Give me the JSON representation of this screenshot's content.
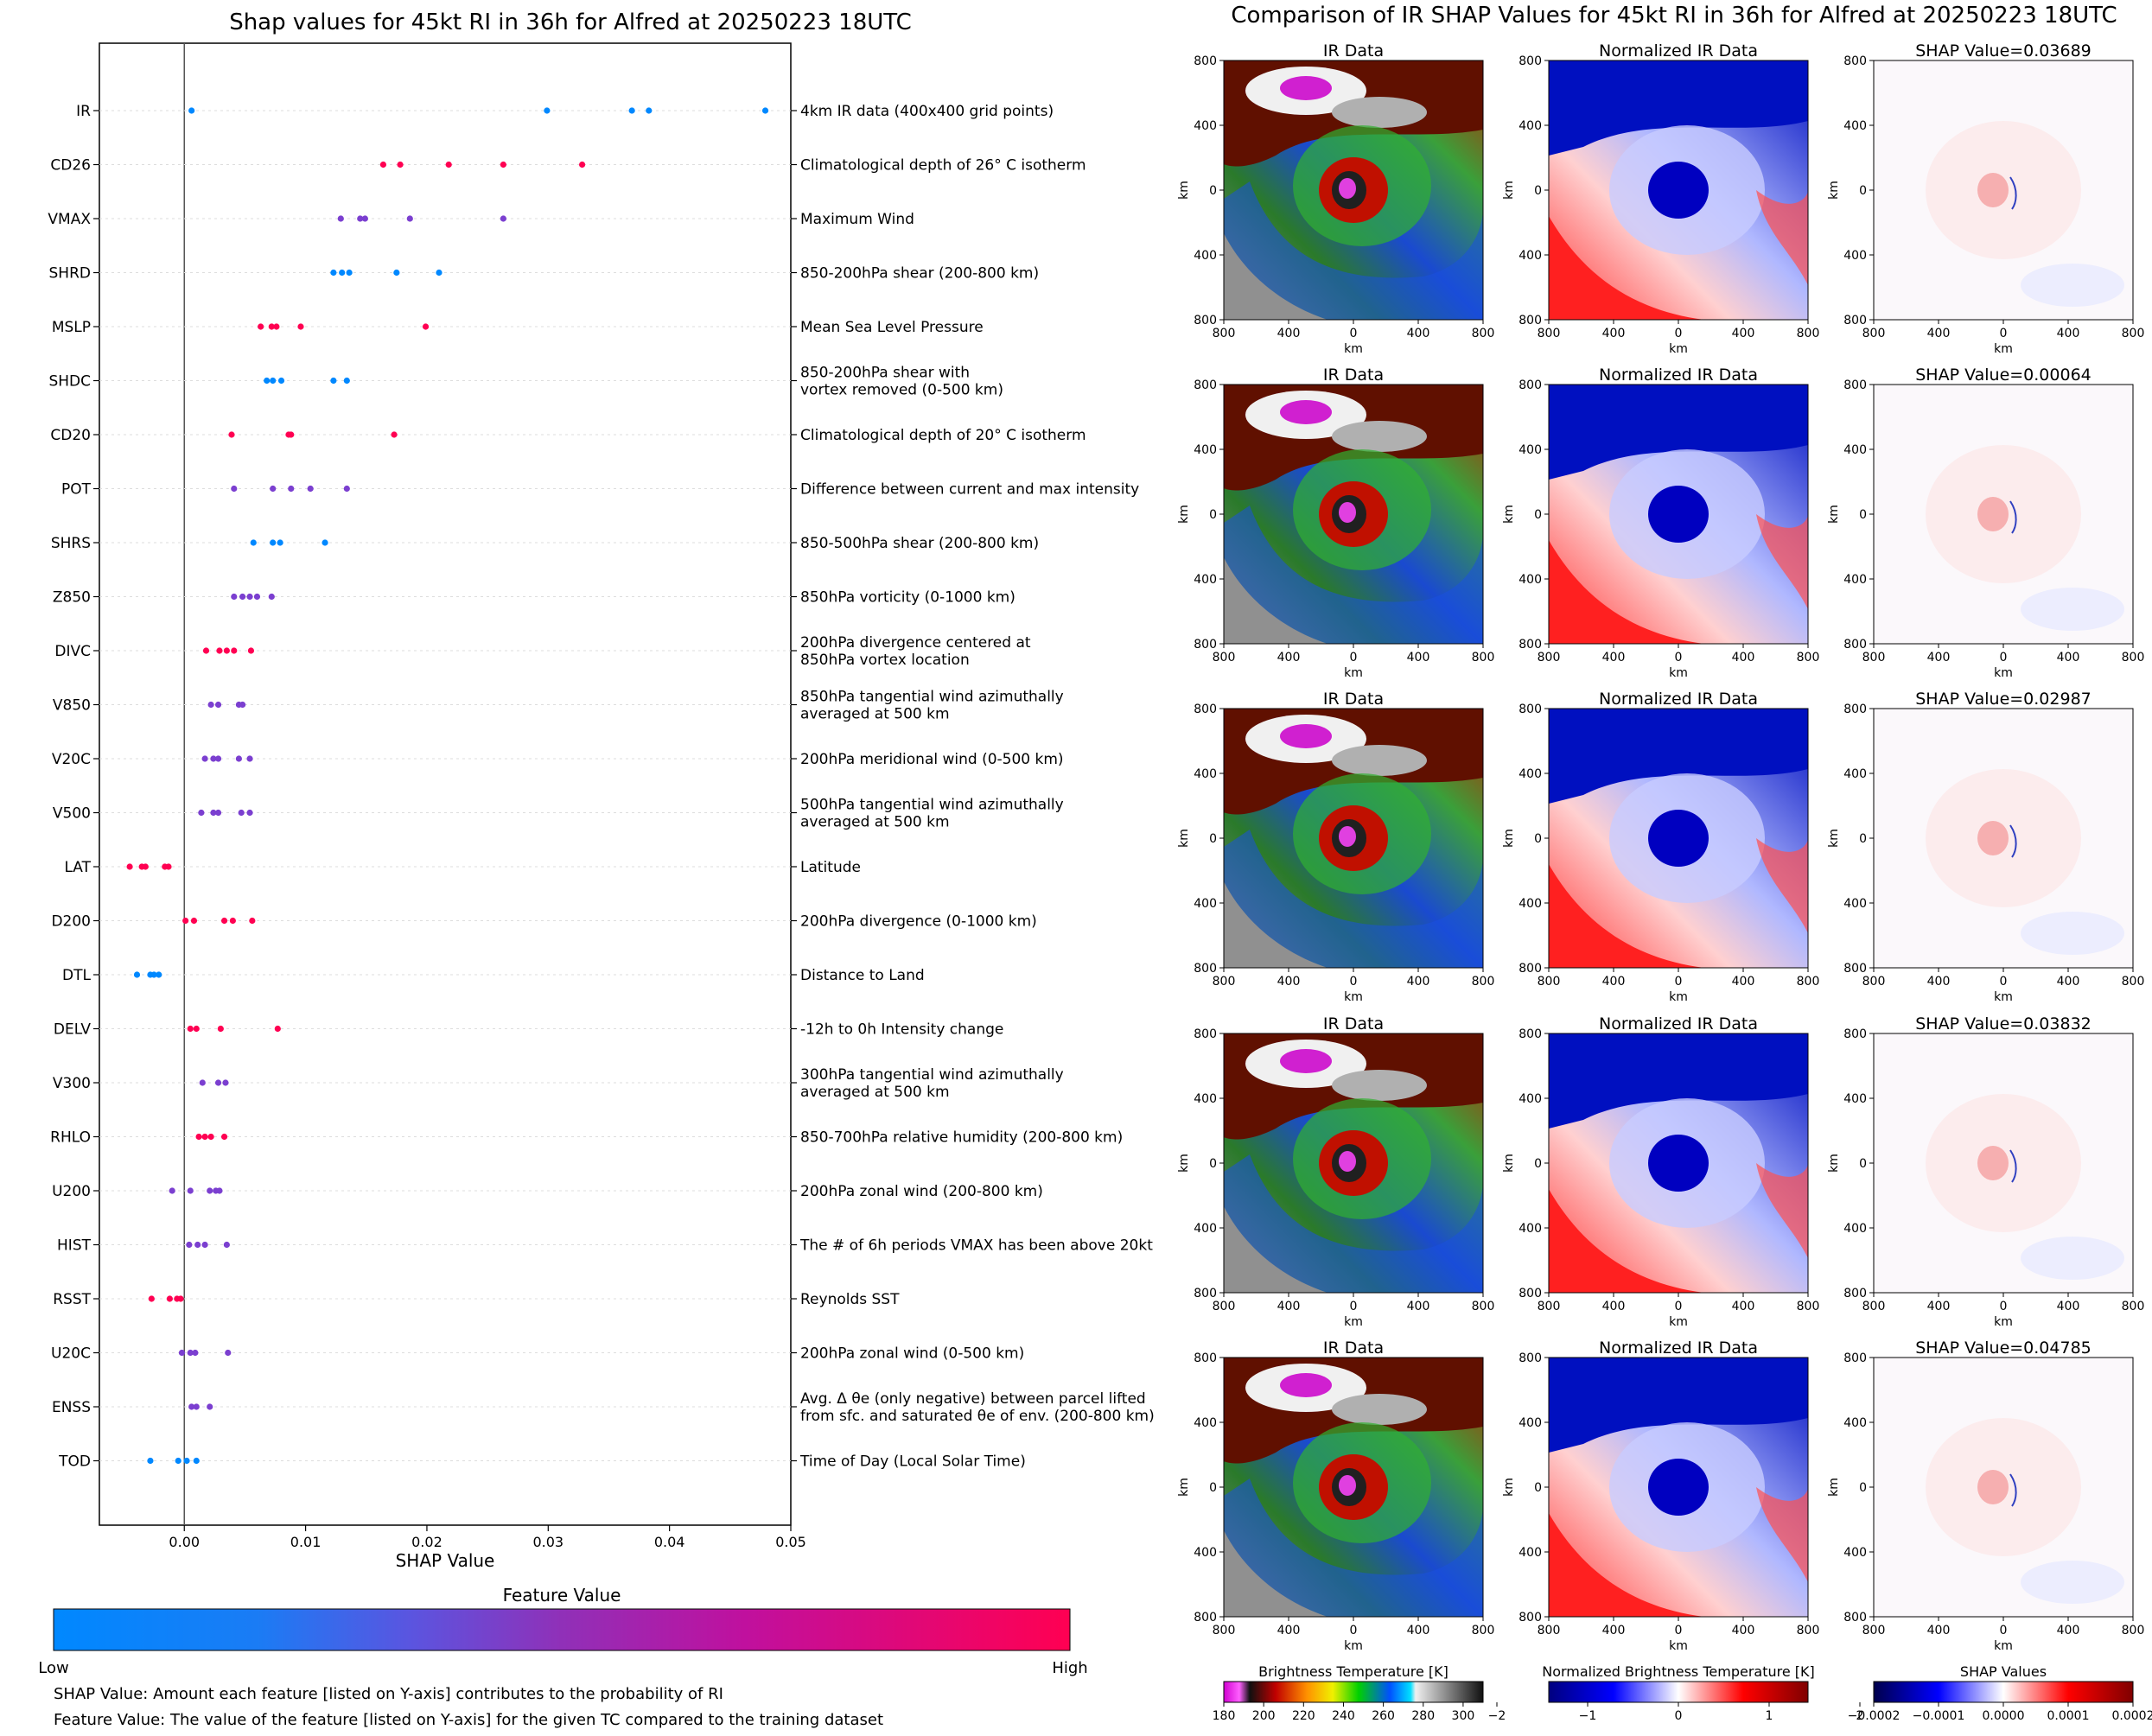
{
  "left_title": "Shap values for 45kt RI in 36h for Alfred at 20250223 18UTC",
  "right_title": "Comparison of IR SHAP Values for 45kt RI in 36h for Alfred at 20250223 18UTC",
  "colors": {
    "low": "#0088ff",
    "mid": "#7b3fd0",
    "high": "#ff0052"
  },
  "chart_data": [
    {
      "type": "scatter",
      "title": "Shap values for 45kt RI in 36h for Alfred at 20250223 18UTC",
      "xlabel": "SHAP Value",
      "xlim": [
        -0.007,
        0.05
      ],
      "xticks": [
        "0.00",
        "0.01",
        "0.02",
        "0.03",
        "0.04",
        "0.05"
      ],
      "features": [
        {
          "code": "IR",
          "desc": "4km IR data (400x400 grid points)",
          "values": [
            0.0006,
            0.0299,
            0.0369,
            0.0383,
            0.0479
          ],
          "color": "low"
        },
        {
          "code": "CD26",
          "desc": "Climatological depth of 26° C isotherm",
          "values": [
            0.0164,
            0.0178,
            0.0218,
            0.0263,
            0.0328
          ],
          "color": "high"
        },
        {
          "code": "VMAX",
          "desc": "Maximum Wind",
          "values": [
            0.0129,
            0.0145,
            0.0149,
            0.0186,
            0.0263
          ],
          "color": "mid"
        },
        {
          "code": "SHRD",
          "desc": "850-200hPa shear (200-800 km)",
          "values": [
            0.0123,
            0.013,
            0.0136,
            0.0175,
            0.021
          ],
          "color": "low"
        },
        {
          "code": "MSLP",
          "desc": "Mean Sea Level Pressure",
          "values": [
            0.0063,
            0.0072,
            0.0076,
            0.0096,
            0.0199
          ],
          "color": "high"
        },
        {
          "code": "SHDC",
          "desc": "850-200hPa shear with|vortex removed (0-500 km)",
          "values": [
            0.0068,
            0.0073,
            0.008,
            0.0123,
            0.0134
          ],
          "color": "low"
        },
        {
          "code": "CD20",
          "desc": "Climatological depth of 20° C isotherm",
          "values": [
            0.0039,
            0.0086,
            0.0088,
            0.0173
          ],
          "color": "high"
        },
        {
          "code": "POT",
          "desc": "Difference between current and max intensity",
          "values": [
            0.0041,
            0.0073,
            0.0088,
            0.0104,
            0.0134
          ],
          "color": "mid"
        },
        {
          "code": "SHRS",
          "desc": "850-500hPa shear (200-800 km)",
          "values": [
            0.0057,
            0.0073,
            0.0079,
            0.0116
          ],
          "color": "low"
        },
        {
          "code": "Z850",
          "desc": "850hPa vorticity (0-1000 km)",
          "values": [
            0.0041,
            0.0048,
            0.0054,
            0.006,
            0.0072
          ],
          "color": "mid"
        },
        {
          "code": "DIVC",
          "desc": "200hPa divergence centered at|850hPa vortex location",
          "values": [
            0.0018,
            0.0029,
            0.0035,
            0.0041,
            0.0055
          ],
          "color": "high"
        },
        {
          "code": "V850",
          "desc": "850hPa tangential wind azimuthally|averaged at 500 km",
          "values": [
            0.0022,
            0.0028,
            0.0045,
            0.0048
          ],
          "color": "mid"
        },
        {
          "code": "V20C",
          "desc": "200hPa meridional wind (0-500 km)",
          "values": [
            0.0017,
            0.0024,
            0.0028,
            0.0045,
            0.0054
          ],
          "color": "mid"
        },
        {
          "code": "V500",
          "desc": "500hPa tangential wind azimuthally|averaged at 500 km",
          "values": [
            0.0014,
            0.0024,
            0.0028,
            0.0047,
            0.0054
          ],
          "color": "mid"
        },
        {
          "code": "LAT",
          "desc": "Latitude",
          "values": [
            -0.0045,
            -0.0035,
            -0.0032,
            -0.0016,
            -0.0013
          ],
          "color": "high"
        },
        {
          "code": "D200",
          "desc": "200hPa divergence (0-1000 km)",
          "values": [
            0.0001,
            0.0008,
            0.0033,
            0.004,
            0.0056
          ],
          "color": "high"
        },
        {
          "code": "DTL",
          "desc": "Distance to Land",
          "values": [
            -0.0039,
            -0.0028,
            -0.0025,
            -0.0021
          ],
          "color": "low"
        },
        {
          "code": "DELV",
          "desc": "-12h to 0h Intensity change",
          "values": [
            0.0005,
            0.001,
            0.003,
            0.0077
          ],
          "color": "high"
        },
        {
          "code": "V300",
          "desc": "300hPa tangential wind azimuthally|averaged at 500 km",
          "values": [
            0.0015,
            0.0028,
            0.0034
          ],
          "color": "mid"
        },
        {
          "code": "RHLO",
          "desc": "850-700hPa relative humidity (200-800 km)",
          "values": [
            0.0012,
            0.0017,
            0.0022,
            0.0033
          ],
          "color": "high"
        },
        {
          "code": "U200",
          "desc": "200hPa zonal wind (200-800 km)",
          "values": [
            -0.001,
            0.0005,
            0.0021,
            0.0026,
            0.0029
          ],
          "color": "mid"
        },
        {
          "code": "HIST",
          "desc": "The # of 6h periods VMAX has been above 20kt",
          "values": [
            0.0004,
            0.0011,
            0.0017,
            0.0035
          ],
          "color": "mid"
        },
        {
          "code": "RSST",
          "desc": "Reynolds SST",
          "values": [
            -0.0027,
            -0.0012,
            -0.0006,
            -0.0003
          ],
          "color": "high"
        },
        {
          "code": "U20C",
          "desc": "200hPa zonal wind (0-500 km)",
          "values": [
            -0.0002,
            0.0005,
            0.0009,
            0.0036
          ],
          "color": "mid"
        },
        {
          "code": "ENSS",
          "desc": "Avg. Δ θe (only negative) between parcel lifted|from sfc. and saturated θe of env. (200-800 km)",
          "values": [
            0.0006,
            0.001,
            0.0021
          ],
          "color": "mid"
        },
        {
          "code": "TOD",
          "desc": "Time of Day (Local Solar Time)",
          "values": [
            -0.0028,
            -0.0005,
            0.0002,
            0.001
          ],
          "color": "low"
        }
      ]
    },
    {
      "type": "heatmap",
      "title": "Comparison of IR SHAP Values for 45kt RI in 36h for Alfred at 20250223 18UTC",
      "panel_titles": [
        "IR Data",
        "Normalized IR Data"
      ],
      "rows": [
        {
          "shap_title": "SHAP Value=0.03689"
        },
        {
          "shap_title": "SHAP Value=0.00064"
        },
        {
          "shap_title": "SHAP Value=0.02987"
        },
        {
          "shap_title": "SHAP Value=0.03832"
        },
        {
          "shap_title": "SHAP Value=0.04785"
        }
      ],
      "axis_label": "km",
      "axis_ticks": [
        "800",
        "400",
        "0",
        "400",
        "800"
      ]
    }
  ],
  "colorbar": {
    "title": "Feature Value",
    "low": "Low",
    "high": "High"
  },
  "notes": [
    "SHAP Value: Amount each feature [listed on Y-axis] contributes to the probability of RI",
    "Feature Value: The value of the feature [listed on Y-axis] for the given TC compared to the training dataset"
  ],
  "bottom_colorbars": [
    {
      "title": "Brightness Temperature [K]",
      "ticks": [
        "180",
        "200",
        "220",
        "240",
        "260",
        "280",
        "300"
      ]
    },
    {
      "title": "Normalized Brightness Temperature [K]",
      "ticks": [
        "−2",
        "−1",
        "0",
        "1",
        "2"
      ]
    },
    {
      "title": "SHAP Values",
      "ticks": [
        "−0.0002",
        "−0.0001",
        "0.0000",
        "0.0001",
        "0.0002"
      ]
    }
  ]
}
